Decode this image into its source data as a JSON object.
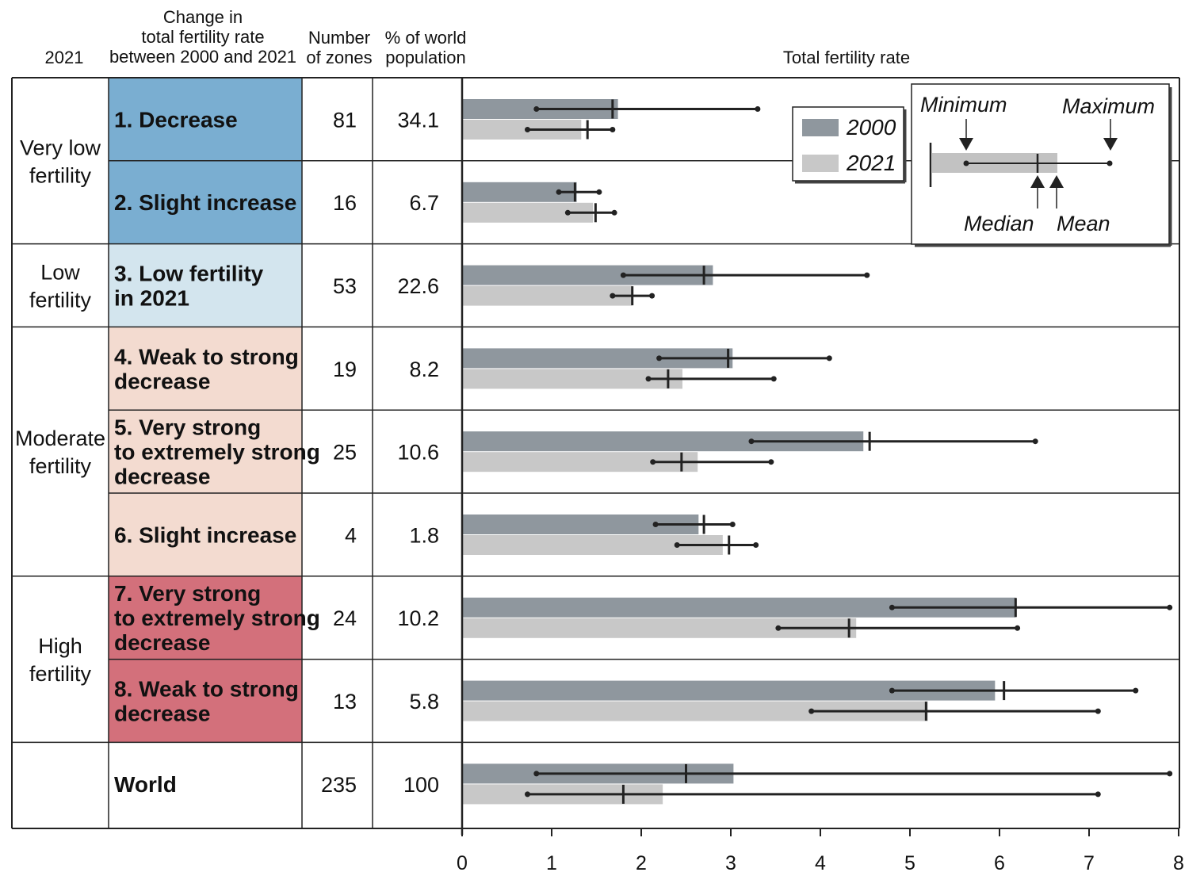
{
  "headers": {
    "year": "2021",
    "change": [
      "Change in",
      "total fertility rate",
      "between 2000 and 2021"
    ],
    "zones": [
      "Number",
      "of zones"
    ],
    "population": [
      "% of world",
      "population"
    ],
    "tfr": "Total fertility rate"
  },
  "groups": [
    {
      "label": [
        "Very low",
        "fertility"
      ],
      "rows": [
        0,
        1
      ]
    },
    {
      "label": [
        "Low",
        "fertility"
      ],
      "rows": [
        2,
        2
      ]
    },
    {
      "label": [
        "Moderate",
        "fertility"
      ],
      "rows": [
        3,
        5
      ]
    },
    {
      "label": [
        "High",
        "fertility"
      ],
      "rows": [
        6,
        7
      ]
    },
    {
      "label": [],
      "rows": [
        8,
        8
      ]
    }
  ],
  "rows": [
    {
      "category": [
        "1. Decrease"
      ],
      "color": "#7aaed1",
      "zones": "81",
      "pct": "34.1"
    },
    {
      "category": [
        "2. Slight increase"
      ],
      "color": "#7aaed1",
      "zones": "16",
      "pct": "6.7"
    },
    {
      "category": [
        "3. Low fertility",
        "in 2021"
      ],
      "color": "#d3e5ee",
      "zones": "53",
      "pct": "22.6"
    },
    {
      "category": [
        "4. Weak to strong",
        "decrease"
      ],
      "color": "#f3dbd0",
      "zones": "19",
      "pct": "8.2"
    },
    {
      "category": [
        "5. Very strong",
        "to extremely strong",
        "decrease"
      ],
      "color": "#f3dbd0",
      "zones": "25",
      "pct": "10.6"
    },
    {
      "category": [
        "6. Slight increase"
      ],
      "color": "#f3dbd0",
      "zones": "4",
      "pct": "1.8"
    },
    {
      "category": [
        "7. Very strong",
        "to extremely strong",
        "decrease"
      ],
      "color": "#d3707b",
      "zones": "24",
      "pct": "10.2"
    },
    {
      "category": [
        "8. Weak to strong",
        "decrease"
      ],
      "color": "#d3707b",
      "zones": "13",
      "pct": "5.8"
    },
    {
      "category": [
        "World"
      ],
      "color": "#ffffff",
      "zones": "235",
      "pct": "100"
    }
  ],
  "legend": {
    "label_2000": "2000",
    "label_2021": "2021",
    "color_2000": "#8f979e",
    "color_2021": "#c8c8c8"
  },
  "key": {
    "minimum": "Minimum",
    "maximum": "Maximum",
    "median": "Median",
    "mean": "Mean"
  },
  "chart_data": {
    "type": "bar",
    "orientation": "horizontal",
    "xlabel": "Total fertility rate",
    "xlim": [
      0,
      8
    ],
    "xticks": [
      0,
      1,
      2,
      3,
      4,
      5,
      6,
      7,
      8
    ],
    "categories": [
      "1. Decrease",
      "2. Slight increase",
      "3. Low fertility in 2021",
      "4. Weak to strong decrease",
      "5. Very strong to extremely strong decrease",
      "6. Slight increase",
      "7. Very strong to extremely strong decrease",
      "8. Weak to strong decrease",
      "World"
    ],
    "series": [
      {
        "name": "2000",
        "color": "#8f979e",
        "mean": [
          1.74,
          1.28,
          2.8,
          3.02,
          4.48,
          2.64,
          6.18,
          5.95,
          3.03
        ],
        "median": [
          1.68,
          1.26,
          2.7,
          2.97,
          4.55,
          2.7,
          6.18,
          6.05,
          2.5
        ],
        "min": [
          0.83,
          1.08,
          1.8,
          2.2,
          3.23,
          2.16,
          4.8,
          4.8,
          0.83
        ],
        "max": [
          3.3,
          1.53,
          4.52,
          4.1,
          6.4,
          3.02,
          7.9,
          7.52,
          7.9
        ]
      },
      {
        "name": "2021",
        "color": "#c8c8c8",
        "mean": [
          1.33,
          1.46,
          1.9,
          2.46,
          2.63,
          2.91,
          4.4,
          5.2,
          2.24
        ],
        "median": [
          1.4,
          1.49,
          1.9,
          2.3,
          2.45,
          2.98,
          4.32,
          5.18,
          1.8
        ],
        "min": [
          0.73,
          1.18,
          1.68,
          2.08,
          2.13,
          2.4,
          3.53,
          3.9,
          0.73
        ],
        "max": [
          1.68,
          1.7,
          2.12,
          3.48,
          3.45,
          3.28,
          6.2,
          7.1,
          7.1
        ]
      }
    ]
  }
}
